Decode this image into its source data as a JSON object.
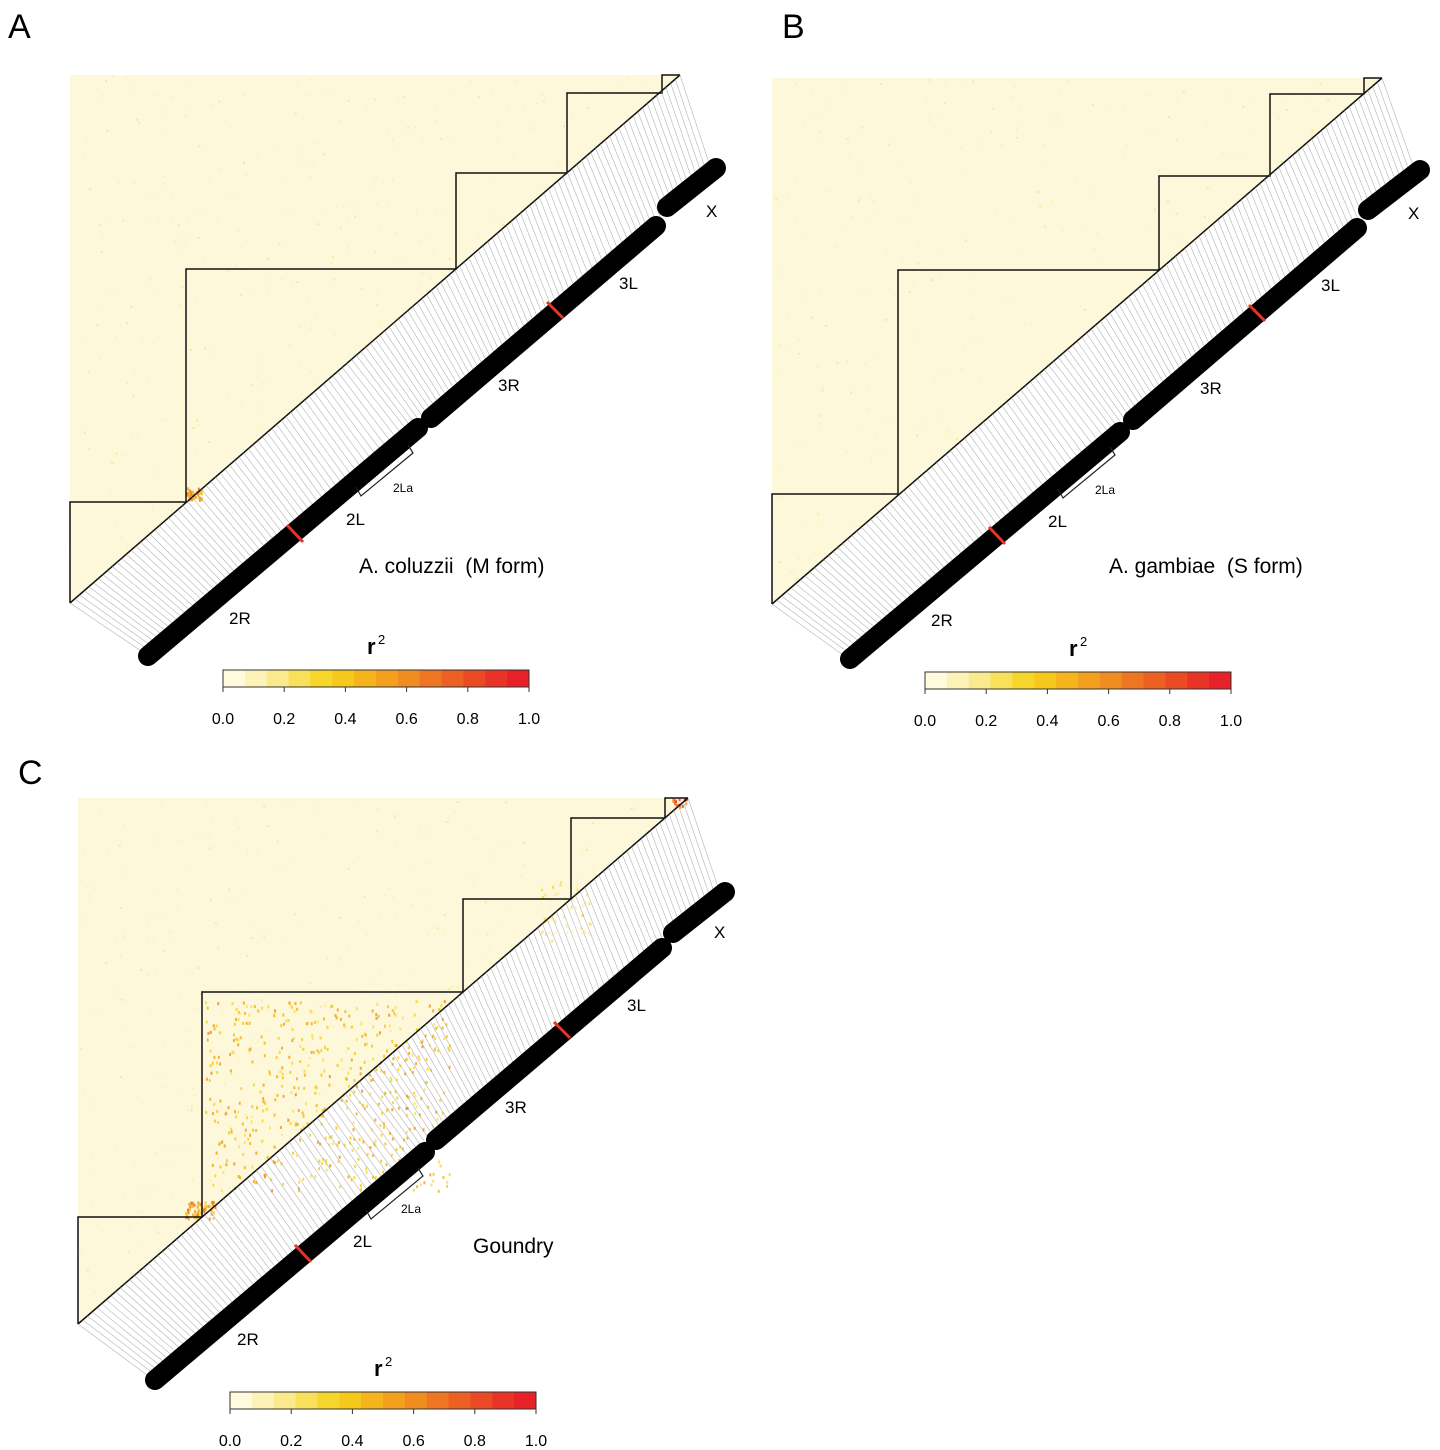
{
  "figure": {
    "panels": [
      {
        "letter": "A",
        "population": "A. coluzzii  (M form)",
        "arm_labels": {
          "2R": "2R",
          "2L": "2L",
          "3R": "3R",
          "3L": "3L",
          "X": "X"
        },
        "inversion_label": "2La",
        "hotspots": [
          {
            "arm_i": "2R",
            "arm_j": "2L",
            "r2": 0.6,
            "where": "2R end near 2L"
          }
        ]
      },
      {
        "letter": "B",
        "population": "A. gambiae  (S form)",
        "arm_labels": {
          "2R": "2R",
          "2L": "2L",
          "3R": "3R",
          "3L": "3L",
          "X": "X"
        },
        "inversion_label": "2La",
        "hotspots": []
      },
      {
        "letter": "C",
        "population": "Goundry",
        "arm_labels": {
          "2R": "2R",
          "2L": "2L",
          "3R": "3R",
          "3L": "3L",
          "X": "X"
        },
        "inversion_label": "2La",
        "hotspots": [
          {
            "arm_i": "2R",
            "arm_j": "2L",
            "r2": 0.6,
            "where": "2R end near 2L"
          },
          {
            "arm_i": "2L",
            "arm_j": "2L",
            "r2": 0.5,
            "where": "2La region"
          },
          {
            "arm_i": "X",
            "arm_j": "X",
            "r2": 0.8,
            "where": "X"
          }
        ]
      }
    ]
  },
  "legend": {
    "title": "r",
    "title_sup": "2",
    "ticks": [
      "0.0",
      "0.2",
      "0.4",
      "0.6",
      "0.8",
      "1.0"
    ],
    "colors": [
      "#fffbdc",
      "#fdf2b8",
      "#fbe98e",
      "#f9e05b",
      "#f7d62c",
      "#f7c81c",
      "#f5b41c",
      "#f3a01e",
      "#f18c20",
      "#ef7621",
      "#ed6023",
      "#eb4a25",
      "#e83426",
      "#e62228"
    ]
  },
  "chart_data": {
    "type": "heatmap",
    "title": "",
    "value_name": "r2",
    "value_range": [
      0.0,
      1.0
    ],
    "chromosome_arms": [
      "2R",
      "2L",
      "3R",
      "3L",
      "X"
    ],
    "marked_region": "2La",
    "panels": [
      {
        "panel": "A",
        "population": "A. coluzzii  (M form)",
        "background_r2": 0.02,
        "elevated_blocks": [
          {
            "arms": [
              "2R",
              "2L"
            ],
            "r2": 0.6
          }
        ]
      },
      {
        "panel": "B",
        "population": "A. gambiae  (S form)",
        "background_r2": 0.02,
        "elevated_blocks": []
      },
      {
        "panel": "C",
        "population": "Goundry",
        "background_r2": 0.03,
        "elevated_blocks": [
          {
            "arms": [
              "2R",
              "2L"
            ],
            "r2": 0.6
          },
          {
            "arms": [
              "2L",
              "2L"
            ],
            "r2": 0.5
          },
          {
            "arms": [
              "X",
              "X"
            ],
            "r2": 0.8
          }
        ]
      }
    ]
  }
}
